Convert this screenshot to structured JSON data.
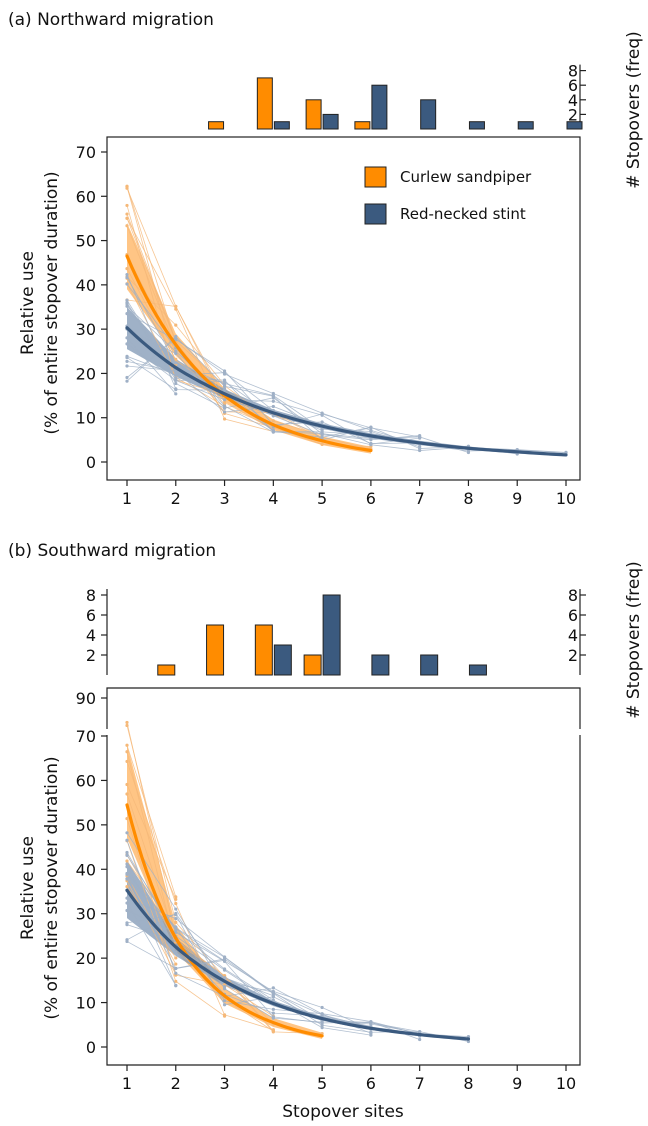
{
  "colors": {
    "curlew": "#ff8c00",
    "curlew_band": "#ffb25c",
    "curlew_thin": "#f5b878",
    "stint": "#3b5a7f",
    "stint_band": "#7f97b4",
    "stint_thin": "#9fb0c6"
  },
  "legend": {
    "curlew": "Curlew sandpiper",
    "stint": "Red-necked stint"
  },
  "chart_data": [
    {
      "id": "a",
      "type": "line",
      "title": "(a) Northward migration",
      "xlabel": "",
      "ylabel": [
        "Relative use",
        "(% of entire stopover duration)"
      ],
      "xlim": [
        0.8,
        10.2
      ],
      "ylim": [
        -2,
        72
      ],
      "x_ticks": [
        1,
        2,
        3,
        4,
        5,
        6,
        7,
        8,
        9,
        10
      ],
      "y_ticks": [
        0,
        10,
        20,
        30,
        40,
        50,
        60,
        70
      ],
      "series": [
        {
          "name": "Curlew sandpiper",
          "x": [
            1,
            2,
            3,
            4,
            5,
            6
          ],
          "fit": [
            46.5,
            26.5,
            15.0,
            8.4,
            4.8,
            2.6
          ],
          "ci_low": [
            39,
            24,
            13.6,
            7.2,
            3.8,
            1.9
          ],
          "ci_high": [
            54,
            29,
            16.6,
            9.6,
            5.8,
            3.4
          ]
        },
        {
          "name": "Red-necked stint",
          "x": [
            1,
            2,
            3,
            4,
            5,
            6,
            7,
            8,
            9,
            10
          ],
          "fit": [
            30.3,
            21.3,
            15.4,
            11.1,
            8.1,
            5.9,
            4.3,
            3.1,
            2.3,
            1.6
          ],
          "ci_low": [
            25.5,
            19.3,
            14.4,
            10.4,
            7.5,
            5.3,
            3.8,
            2.7,
            1.9,
            1.3
          ],
          "ci_high": [
            35,
            23.3,
            16.4,
            11.8,
            8.7,
            6.5,
            4.8,
            3.5,
            2.6,
            1.9
          ]
        }
      ],
      "histogram": {
        "ylabel": "# Stopovers (freq)",
        "y_ticks": [
          2,
          4,
          6,
          8
        ],
        "ylim": [
          0,
          8.5
        ],
        "curlew": [
          [
            3,
            1
          ],
          [
            4,
            7
          ],
          [
            5,
            4
          ],
          [
            6,
            1
          ]
        ],
        "stint": [
          [
            4,
            1
          ],
          [
            5,
            2
          ],
          [
            6,
            6
          ],
          [
            7,
            4
          ],
          [
            8,
            1
          ],
          [
            9,
            1
          ],
          [
            10,
            1
          ]
        ]
      }
    },
    {
      "id": "b",
      "type": "line",
      "title": "(b) Southward migration",
      "xlabel": "Stopover sites",
      "ylabel": [
        "Relative use",
        "(% of entire stopover duration)"
      ],
      "xlim": [
        0.8,
        10.2
      ],
      "ylim": [
        -2,
        72
      ],
      "upper_ylim": [
        83,
        93
      ],
      "x_ticks": [
        1,
        2,
        3,
        4,
        5,
        6,
        7,
        8,
        9,
        10
      ],
      "y_ticks": [
        0,
        10,
        20,
        30,
        40,
        50,
        60,
        70
      ],
      "upper_y_ticks": [
        90
      ],
      "series": [
        {
          "name": "Curlew sandpiper",
          "x": [
            1,
            2,
            3,
            4,
            5
          ],
          "fit": [
            54.5,
            24.5,
            11.5,
            5.5,
            2.5
          ],
          "ci_low": [
            47,
            21.5,
            9.8,
            4.5,
            1.8
          ],
          "ci_high": [
            68,
            27.5,
            13.2,
            6.5,
            3.2
          ]
        },
        {
          "name": "Red-necked stint",
          "x": [
            1,
            2,
            3,
            4,
            5,
            6,
            7,
            8
          ],
          "fit": [
            35.3,
            22.5,
            14.8,
            9.8,
            6.4,
            4.2,
            2.8,
            1.8
          ],
          "ci_low": [
            29,
            20.5,
            13.8,
            9.2,
            5.9,
            3.8,
            2.5,
            1.5
          ],
          "ci_high": [
            42,
            24.5,
            15.8,
            10.4,
            6.9,
            4.6,
            3.1,
            2.1
          ]
        }
      ],
      "histogram": {
        "ylabel": "# Stopovers (freq)",
        "y_ticks": [
          2,
          4,
          6,
          8
        ],
        "ylim": [
          0,
          8.5
        ],
        "curlew": [
          [
            2,
            1
          ],
          [
            3,
            5
          ],
          [
            4,
            5
          ],
          [
            5,
            2
          ]
        ],
        "stint": [
          [
            4,
            3
          ],
          [
            5,
            8
          ],
          [
            6,
            2
          ],
          [
            7,
            2
          ],
          [
            8,
            1
          ]
        ]
      }
    }
  ]
}
